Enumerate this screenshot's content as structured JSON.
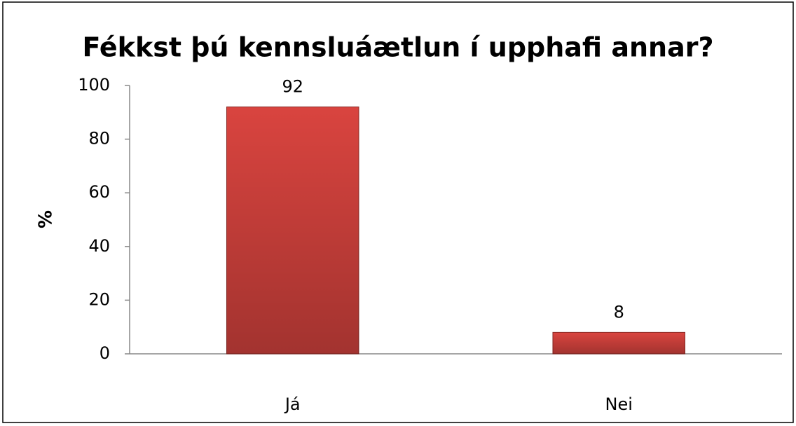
{
  "chart_data": {
    "type": "bar",
    "title": "Fékkst þú kennsluáætlun í upphafi annar?",
    "ylabel": "%",
    "categories": [
      "Já",
      "Nei"
    ],
    "values": [
      92,
      8
    ],
    "color": "#d9443f",
    "ylim": [
      0,
      100
    ],
    "yticks": [
      0,
      20,
      40,
      60,
      80,
      100
    ],
    "grid": false
  }
}
